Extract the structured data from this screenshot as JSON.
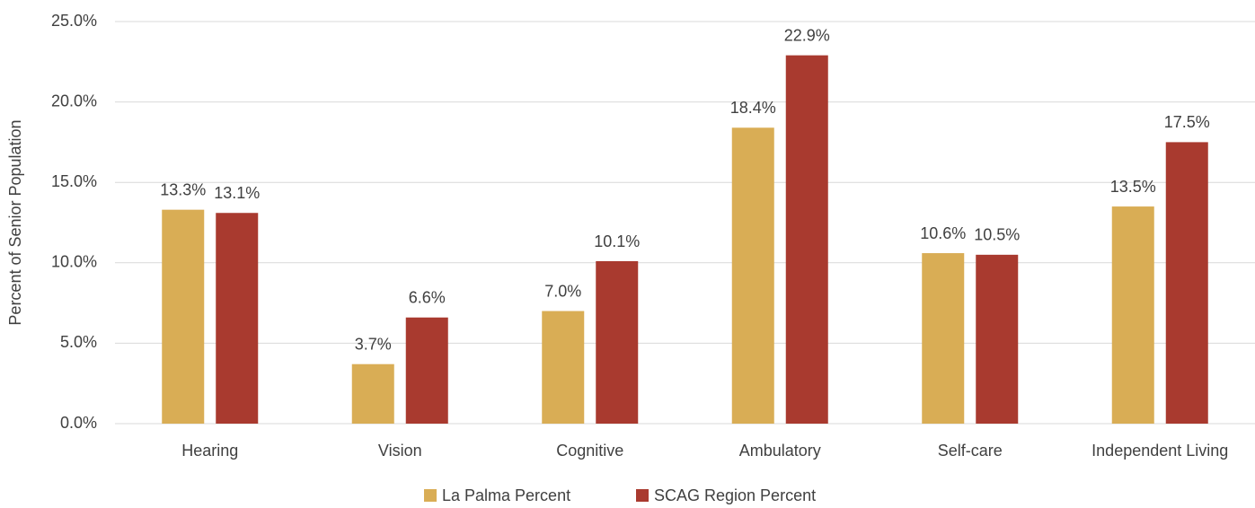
{
  "chart_data": {
    "type": "bar",
    "y_label": "Percent of Senior Population",
    "categories": [
      "Hearing",
      "Vision",
      "Cognitive",
      "Ambulatory",
      "Self-care",
      "Independent Living"
    ],
    "series": [
      {
        "name": "La Palma Percent",
        "color": "#d9ad55",
        "values": [
          13.3,
          3.7,
          7.0,
          18.4,
          10.6,
          13.5
        ],
        "value_labels": [
          "13.3%",
          "3.7%",
          "7.0%",
          "18.4%",
          "10.6%",
          "13.5%"
        ]
      },
      {
        "name": "SCAG Region Percent",
        "color": "#a93a2f",
        "values": [
          13.1,
          6.6,
          10.1,
          22.9,
          10.5,
          17.5
        ],
        "value_labels": [
          "13.1%",
          "6.6%",
          "10.1%",
          "22.9%",
          "10.5%",
          "17.5%"
        ]
      }
    ],
    "ylim": [
      0,
      25
    ],
    "yticks": [
      {
        "value": 0,
        "label": "0.0%"
      },
      {
        "value": 5,
        "label": "5.0%"
      },
      {
        "value": 10,
        "label": "10.0%"
      },
      {
        "value": 15,
        "label": "15.0%"
      },
      {
        "value": 20,
        "label": "20.0%"
      },
      {
        "value": 25,
        "label": "25.0%"
      }
    ],
    "grid": true,
    "legend": "bottom"
  }
}
